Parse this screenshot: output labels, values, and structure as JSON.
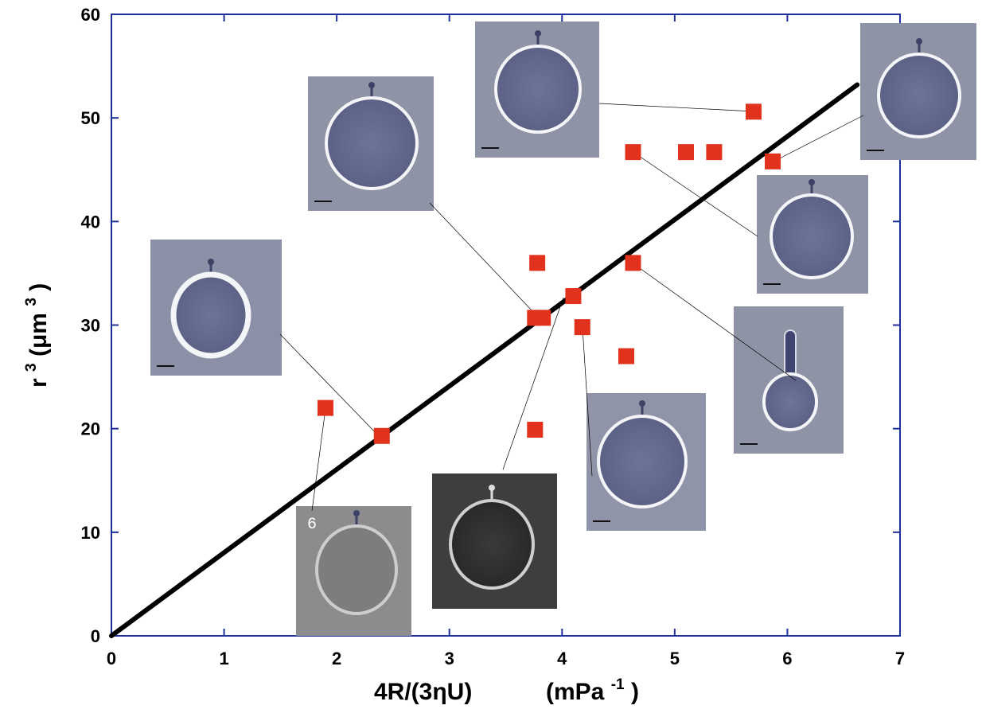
{
  "chart_data": {
    "type": "scatter",
    "xlabel": "4R/(3ηU)",
    "xunit": "(mPa",
    "xunit_exp": "-1",
    "xunit_close": ")",
    "ylabel_base": "r",
    "ylabel_exp": "3",
    "ylabel_unit": " (μm",
    "ylabel_unit_exp": "3",
    "ylabel_close": ")",
    "xlim": [
      0,
      7
    ],
    "ylim": [
      0,
      60
    ],
    "x_ticks": [
      "0",
      "1",
      "2",
      "3",
      "4",
      "5",
      "6",
      "7"
    ],
    "y_ticks": [
      "0",
      "10",
      "20",
      "30",
      "40",
      "50",
      "60"
    ],
    "grid": false,
    "marker_color": "#e0321c",
    "axis_color": "#1f2f9a",
    "points": [
      {
        "x": 1.9,
        "y": 22.0
      },
      {
        "x": 2.4,
        "y": 19.3
      },
      {
        "x": 3.76,
        "y": 19.9
      },
      {
        "x": 3.76,
        "y": 30.7
      },
      {
        "x": 3.83,
        "y": 30.7
      },
      {
        "x": 3.78,
        "y": 36.0
      },
      {
        "x": 4.1,
        "y": 32.8
      },
      {
        "x": 4.18,
        "y": 29.8
      },
      {
        "x": 4.57,
        "y": 27.0
      },
      {
        "x": 4.63,
        "y": 36.0
      },
      {
        "x": 4.63,
        "y": 46.7
      },
      {
        "x": 5.1,
        "y": 46.7
      },
      {
        "x": 5.35,
        "y": 46.7
      },
      {
        "x": 5.7,
        "y": 50.6
      },
      {
        "x": 5.87,
        "y": 45.8
      }
    ],
    "fit_line": {
      "x": [
        0,
        6.62
      ],
      "y": [
        0,
        53.2
      ]
    },
    "insets": [
      {
        "name": "inset-top-center",
        "tone": "light",
        "shape": "round"
      },
      {
        "name": "inset-top-right",
        "tone": "light",
        "shape": "round"
      },
      {
        "name": "inset-upper-left",
        "tone": "light",
        "shape": "round"
      },
      {
        "name": "inset-mid-left",
        "tone": "bright",
        "shape": "round"
      },
      {
        "name": "inset-right-middle",
        "tone": "light",
        "shape": "round"
      },
      {
        "name": "inset-right-tube",
        "tone": "light",
        "shape": "tube"
      },
      {
        "name": "inset-center-bottom",
        "tone": "medium",
        "shape": "round"
      },
      {
        "name": "inset-bottom-dark",
        "tone": "dark",
        "shape": "round"
      },
      {
        "name": "inset-bottom-left",
        "tone": "faded",
        "shape": "round",
        "label": "6"
      }
    ]
  }
}
